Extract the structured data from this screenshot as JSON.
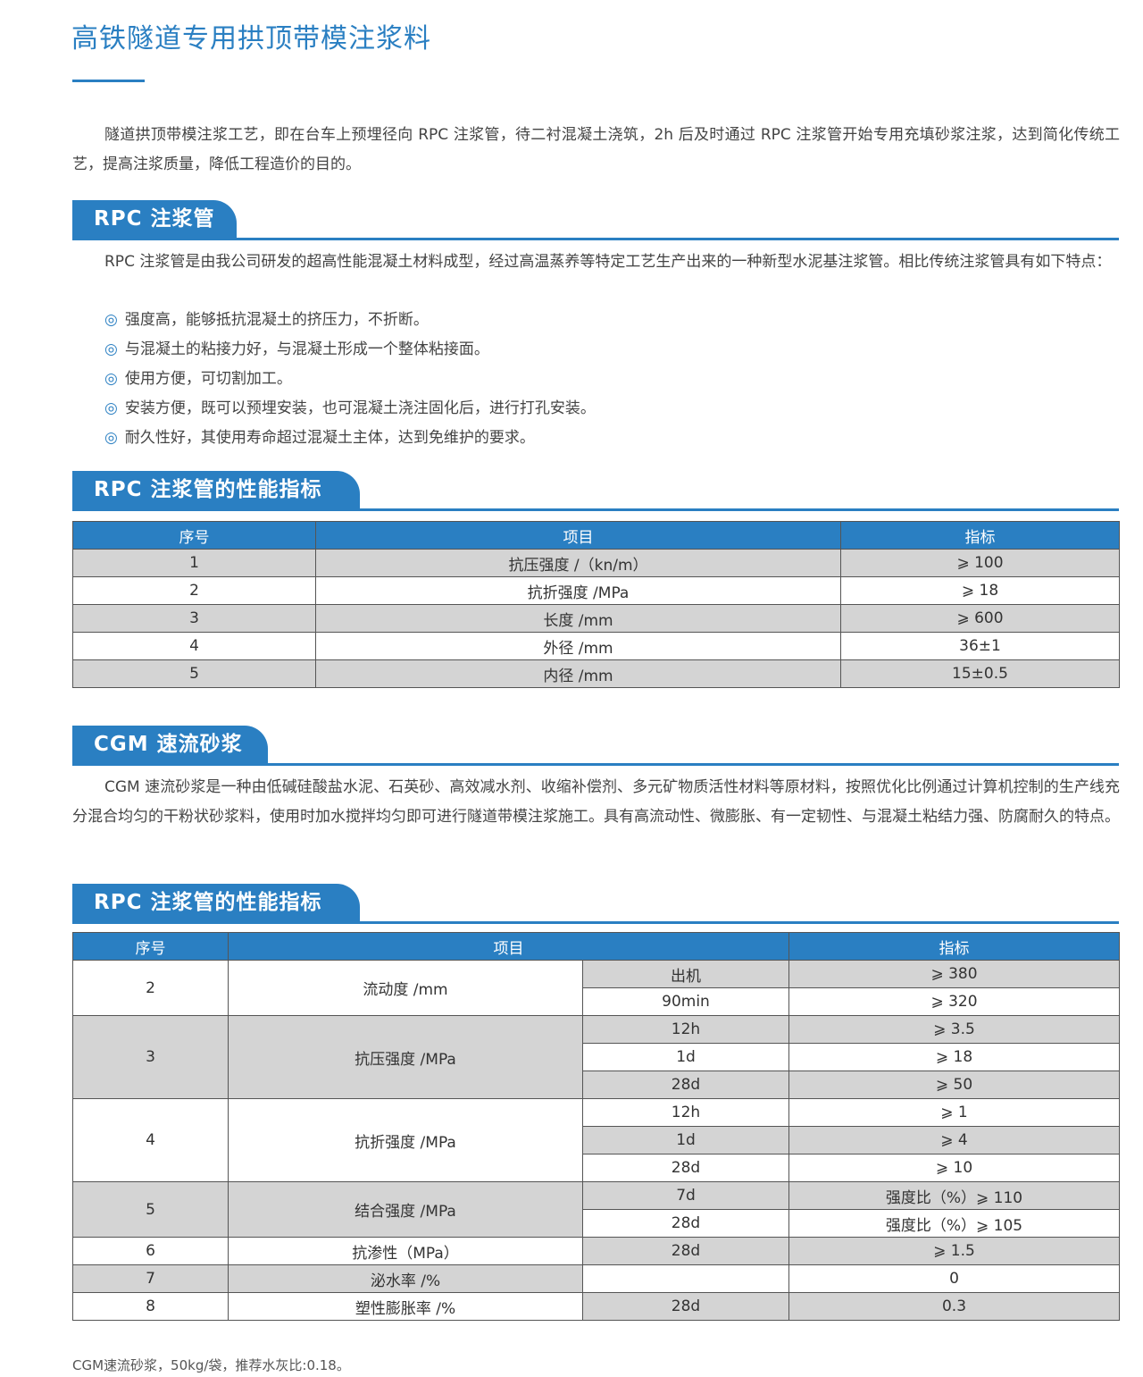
{
  "title": "高铁隧道专用拱顶带模注浆料",
  "intro": "隧道拱顶带模注浆工艺，即在台车上预埋径向 RPC 注浆管，待二衬混凝土浇筑，2h 后及时通过 RPC 注浆管开始专用充填砂浆注浆，达到简化传统工艺，提高注浆质量，降低工程造价的目的。",
  "accent": "#2a7fc2",
  "sections": {
    "rpc": {
      "heading": "RPC 注浆管",
      "text": "RPC 注浆管是由我公司研发的超高性能混凝土材料成型，经过高温蒸养等特定工艺生产出来的一种新型水泥基注浆管。相比传统注浆管具有如下特点：",
      "bullet_icon": "◎",
      "bullets": [
        "强度高，能够抵抗混凝土的挤压力，不折断。",
        "与混凝土的粘接力好，与混凝土形成一个整体粘接面。",
        "使用方便，可切割加工。",
        "安装方便，既可以预埋安装，也可混凝土浇注固化后，进行打孔安装。",
        "耐久性好，其使用寿命超过混凝土主体，达到免维护的要求。"
      ]
    },
    "rpc_table": {
      "heading": "RPC 注浆管的性能指标",
      "headers": [
        "序号",
        "项目",
        "指标"
      ],
      "rows": [
        [
          "1",
          "抗压强度 /（kn/m）",
          "⩾ 100"
        ],
        [
          "2",
          "抗折强度 /MPa",
          "⩾ 18"
        ],
        [
          "3",
          "长度 /mm",
          "⩾ 600"
        ],
        [
          "4",
          "外径 /mm",
          "36±1"
        ],
        [
          "5",
          "内径 /mm",
          "15±0.5"
        ]
      ]
    },
    "cgm": {
      "heading": "CGM 速流砂浆",
      "text": "CGM 速流砂浆是一种由低碱硅酸盐水泥、石英砂、高效减水剂、收缩补偿剂、多元矿物质活性材料等原材料，按照优化比例通过计算机控制的生产线充分混合均匀的干粉状砂浆料，使用时加水搅拌均匀即可进行隧道带模注浆施工。具有高流动性、微膨胀、有一定韧性、与混凝土粘结力强、防腐耐久的特点。"
    },
    "cgm_table": {
      "heading": "RPC 注浆管的性能指标",
      "headers": [
        "序号",
        "项目",
        "指标"
      ],
      "groups": [
        {
          "no": "2",
          "item": "流动度 /mm",
          "sub": [
            [
              "出机",
              "⩾ 380"
            ],
            [
              "90min",
              "⩾ 320"
            ]
          ]
        },
        {
          "no": "3",
          "item": "抗压强度 /MPa",
          "sub": [
            [
              "12h",
              "⩾ 3.5"
            ],
            [
              "1d",
              "⩾ 18"
            ],
            [
              "28d",
              "⩾ 50"
            ]
          ]
        },
        {
          "no": "4",
          "item": "抗折强度 /MPa",
          "sub": [
            [
              "12h",
              "⩾ 1"
            ],
            [
              "1d",
              "⩾ 4"
            ],
            [
              "28d",
              "⩾ 10"
            ]
          ]
        },
        {
          "no": "5",
          "item": "结合强度 /MPa",
          "sub": [
            [
              "7d",
              "强度比（%）⩾ 110"
            ],
            [
              "28d",
              "强度比（%）⩾ 105"
            ]
          ]
        },
        {
          "no": "6",
          "item": "抗渗性（MPa）",
          "sub": [
            [
              "28d",
              "⩾ 1.5"
            ]
          ]
        },
        {
          "no": "7",
          "item": "泌水率 /%",
          "sub": [
            [
              "",
              "0"
            ]
          ]
        },
        {
          "no": "8",
          "item": "塑性膨胀率 /%",
          "sub": [
            [
              "28d",
              "0.3"
            ]
          ]
        }
      ]
    },
    "note": "CGM速流砂浆，50kg/袋，推荐水灰比:0.18。"
  }
}
